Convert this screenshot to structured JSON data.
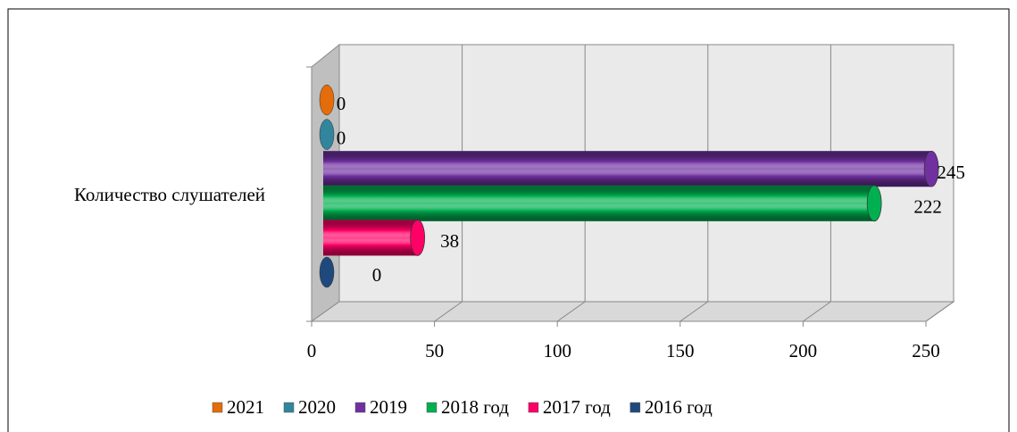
{
  "chart_data": {
    "type": "bar3d",
    "categories": [
      "Количество слушателей"
    ],
    "series": [
      {
        "name": "2021",
        "color": "#e46c0a",
        "values": [
          0
        ]
      },
      {
        "name": "2020",
        "color": "#31859c",
        "values": [
          0
        ]
      },
      {
        "name": "2019",
        "color": "#7030a0",
        "values": [
          245
        ]
      },
      {
        "name": "2018 год",
        "color": "#00b050",
        "values": [
          222
        ]
      },
      {
        "name": "2017 год",
        "color": "#ff0066",
        "values": [
          38
        ]
      },
      {
        "name": "2016 год",
        "color": "#1f497d",
        "values": [
          0
        ]
      }
    ],
    "xlim": [
      0,
      250
    ],
    "xticks": [
      0,
      50,
      100,
      150,
      200,
      250
    ],
    "grid": true,
    "legend": "bottom"
  }
}
